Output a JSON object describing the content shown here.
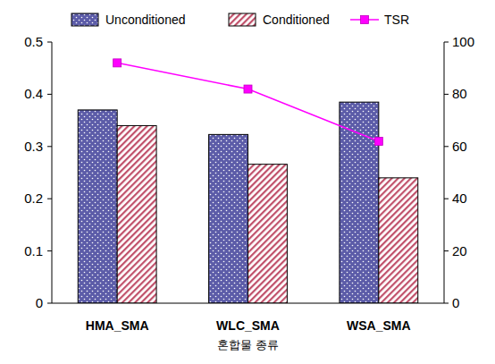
{
  "chart_data": {
    "type": "bar",
    "x_label": "혼합물 종류",
    "categories": [
      "HMA_SMA",
      "WLC_SMA",
      "WSA_SMA"
    ],
    "series": [
      {
        "name": "Unconditioned",
        "color": "#5c5ca8",
        "values": [
          0.37,
          0.323,
          0.385
        ]
      },
      {
        "name": "Conditioned",
        "color": "#c0506a",
        "values": [
          0.34,
          0.266,
          0.24
        ]
      },
      {
        "name": "TSR",
        "type": "line",
        "axis": "y2",
        "color": "#ff00ff",
        "marker": "square",
        "values": [
          92,
          82,
          62
        ]
      }
    ],
    "ylim": [
      0,
      0.5
    ],
    "yticks": [
      0,
      0.1,
      0.2,
      0.3,
      0.4,
      0.5
    ],
    "y2lim": [
      0,
      100
    ],
    "y2ticks": [
      0,
      20,
      40,
      60,
      80,
      100
    ],
    "legend": "top",
    "grid": false
  }
}
